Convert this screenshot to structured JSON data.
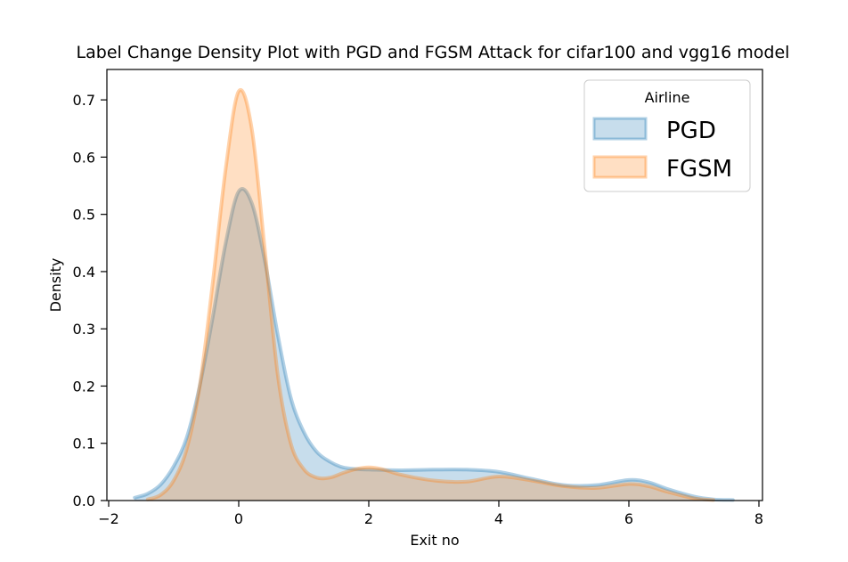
{
  "chart_data": {
    "type": "area",
    "title": "Label Change Density Plot with PGD and FGSM Attack for cifar100 and  vgg16 model",
    "xlabel": "Exit no",
    "ylabel": "Density",
    "xlim": [
      -2,
      8
    ],
    "ylim": [
      0.0,
      0.75
    ],
    "xticks": [
      "−2",
      "0",
      "2",
      "4",
      "6",
      "8"
    ],
    "yticks": [
      "0.0",
      "0.1",
      "0.2",
      "0.3",
      "0.4",
      "0.5",
      "0.6",
      "0.7"
    ],
    "xtick_values": [
      -2,
      0,
      2,
      4,
      6,
      8
    ],
    "ytick_values": [
      0.0,
      0.1,
      0.2,
      0.3,
      0.4,
      0.5,
      0.6,
      0.7
    ],
    "grid": false,
    "legend": {
      "title": "Airline",
      "placement": "top-right"
    },
    "series": [
      {
        "name": "PGD",
        "color": "#1f77b4",
        "x": [
          -1.6,
          -1.4,
          -1.2,
          -1.0,
          -0.8,
          -0.6,
          -0.4,
          -0.2,
          0.0,
          0.2,
          0.4,
          0.6,
          0.8,
          1.0,
          1.2,
          1.4,
          1.6,
          1.8,
          2.0,
          2.5,
          3.0,
          3.5,
          4.0,
          4.5,
          5.0,
          5.5,
          6.0,
          6.3,
          6.6,
          7.0,
          7.3,
          7.6
        ],
        "values": [
          0.005,
          0.012,
          0.028,
          0.06,
          0.11,
          0.2,
          0.32,
          0.45,
          0.54,
          0.52,
          0.42,
          0.29,
          0.18,
          0.12,
          0.085,
          0.068,
          0.058,
          0.055,
          0.054,
          0.053,
          0.054,
          0.054,
          0.05,
          0.038,
          0.027,
          0.027,
          0.036,
          0.032,
          0.02,
          0.007,
          0.002,
          0.001
        ]
      },
      {
        "name": "FGSM",
        "color": "#ff7f0e",
        "x": [
          -1.4,
          -1.2,
          -1.0,
          -0.8,
          -0.6,
          -0.4,
          -0.2,
          0.0,
          0.2,
          0.4,
          0.6,
          0.8,
          1.0,
          1.2,
          1.4,
          1.6,
          1.8,
          2.0,
          2.2,
          2.5,
          3.0,
          3.5,
          4.0,
          4.5,
          5.0,
          5.5,
          6.0,
          6.3,
          6.6,
          7.0,
          7.3
        ],
        "values": [
          0.002,
          0.01,
          0.035,
          0.09,
          0.2,
          0.38,
          0.58,
          0.715,
          0.65,
          0.44,
          0.22,
          0.1,
          0.055,
          0.04,
          0.04,
          0.048,
          0.055,
          0.058,
          0.055,
          0.045,
          0.035,
          0.033,
          0.042,
          0.035,
          0.025,
          0.022,
          0.029,
          0.025,
          0.015,
          0.004,
          0.001
        ]
      }
    ]
  }
}
